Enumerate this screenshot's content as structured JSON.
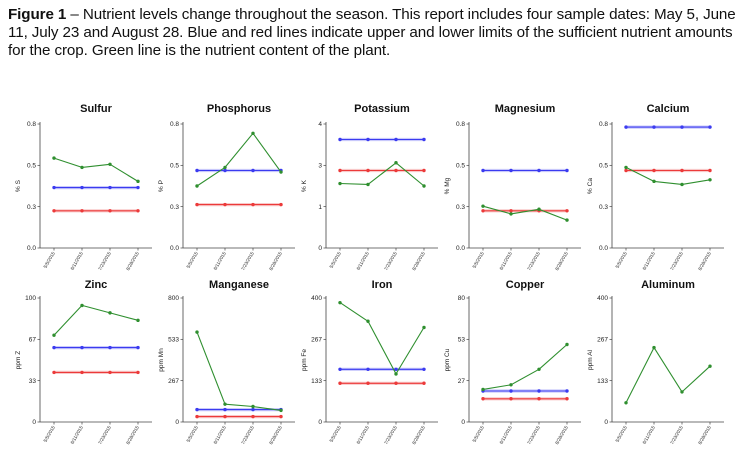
{
  "caption": {
    "figure_label": "Figure 1",
    "text": " – Nutrient levels change throughout the season. This report includes four sample dates: May 5, June 11, July 23 and August 28.  Blue and red lines indicate upper and lower limits of the sufficient nutrient amounts for the crop. Green line is the nutrient content of the plant."
  },
  "colors": {
    "upper": "#3b3bf0",
    "lower": "#ec3a3a",
    "content": "#2f8f2f",
    "axis": "#444444",
    "upper_band": "#c8c8fb",
    "lower_band": "#f8c8c8"
  },
  "chart_data": [
    {
      "type": "line",
      "title": "Sulfur",
      "ylabel": "% S",
      "ylim": [
        0,
        0.8
      ],
      "yticks": [
        "0.0",
        "0.3",
        "0.5",
        "0.8"
      ],
      "categories": [
        "5/5/2015",
        "6/11/2015",
        "7/23/2015",
        "8/28/2015"
      ],
      "series": [
        {
          "role": "upper",
          "values": [
            0.39,
            0.39,
            0.39,
            0.39
          ]
        },
        {
          "role": "lower",
          "values": [
            0.24,
            0.24,
            0.24,
            0.24
          ]
        },
        {
          "role": "content",
          "values": [
            0.58,
            0.52,
            0.54,
            0.43
          ]
        }
      ]
    },
    {
      "type": "line",
      "title": "Phosphorus",
      "ylabel": "% P",
      "ylim": [
        0,
        0.8
      ],
      "yticks": [
        "0.0",
        "0.3",
        "0.5",
        "0.8"
      ],
      "categories": [
        "5/5/2015",
        "6/11/2015",
        "7/23/2015",
        "8/28/2015"
      ],
      "series": [
        {
          "role": "upper",
          "values": [
            0.5,
            0.5,
            0.5,
            0.5
          ]
        },
        {
          "role": "lower",
          "values": [
            0.28,
            0.28,
            0.28,
            0.28
          ]
        },
        {
          "role": "content",
          "values": [
            0.4,
            0.52,
            0.74,
            0.49
          ]
        }
      ]
    },
    {
      "type": "line",
      "title": "Potassium",
      "ylabel": "% K",
      "ylim": [
        0,
        4
      ],
      "yticks": [
        "0",
        "1",
        "3",
        "4"
      ],
      "categories": [
        "5/5/2015",
        "6/11/2015",
        "7/23/2015",
        "8/28/2015"
      ],
      "series": [
        {
          "role": "upper",
          "values": [
            3.5,
            3.5,
            3.5,
            3.5
          ]
        },
        {
          "role": "lower",
          "values": [
            2.5,
            2.5,
            2.5,
            2.5
          ]
        },
        {
          "role": "content",
          "values": [
            2.08,
            2.05,
            2.75,
            2.0
          ]
        }
      ]
    },
    {
      "type": "line",
      "title": "Magnesium",
      "ylabel": "% Mg",
      "ylim": [
        0,
        0.8
      ],
      "yticks": [
        "0.0",
        "0.3",
        "0.5",
        "0.8"
      ],
      "categories": [
        "5/5/2015",
        "6/11/2015",
        "7/23/2015",
        "8/28/2015"
      ],
      "series": [
        {
          "role": "upper",
          "values": [
            0.5,
            0.5,
            0.5,
            0.5
          ]
        },
        {
          "role": "lower",
          "values": [
            0.24,
            0.24,
            0.24,
            0.24
          ]
        },
        {
          "role": "content",
          "values": [
            0.27,
            0.22,
            0.25,
            0.18
          ]
        }
      ]
    },
    {
      "type": "line",
      "title": "Calcium",
      "ylabel": "% Ca",
      "ylim": [
        0,
        0.8
      ],
      "yticks": [
        "0.0",
        "0.3",
        "0.5",
        "0.8"
      ],
      "categories": [
        "5/5/2015",
        "6/11/2015",
        "7/23/2015",
        "8/28/2015"
      ],
      "series": [
        {
          "role": "upper",
          "values": [
            0.78,
            0.78,
            0.78,
            0.78
          ]
        },
        {
          "role": "lower",
          "values": [
            0.5,
            0.5,
            0.5,
            0.5
          ]
        },
        {
          "role": "content",
          "values": [
            0.52,
            0.43,
            0.41,
            0.44
          ]
        }
      ]
    },
    {
      "type": "line",
      "title": "Zinc",
      "ylabel": "ppm Z",
      "ylim": [
        0,
        100
      ],
      "yticks": [
        "0",
        "33",
        "67",
        "100"
      ],
      "categories": [
        "5/5/2015",
        "6/11/2015",
        "7/23/2015",
        "8/28/2015"
      ],
      "series": [
        {
          "role": "upper",
          "values": [
            60,
            60,
            60,
            60
          ]
        },
        {
          "role": "lower",
          "values": [
            40,
            40,
            40,
            40
          ]
        },
        {
          "role": "content",
          "values": [
            70,
            94,
            88,
            82
          ]
        }
      ]
    },
    {
      "type": "line",
      "title": "Manganese",
      "ylabel": "ppm Mn",
      "ylim": [
        0,
        800
      ],
      "yticks": [
        "0",
        "267",
        "533",
        "800"
      ],
      "categories": [
        "5/5/2015",
        "6/11/2015",
        "7/23/2015",
        "8/28/2015"
      ],
      "series": [
        {
          "role": "upper",
          "values": [
            80,
            80,
            80,
            80
          ]
        },
        {
          "role": "lower",
          "values": [
            35,
            35,
            35,
            35
          ]
        },
        {
          "role": "content",
          "values": [
            580,
            115,
            100,
            75
          ]
        }
      ]
    },
    {
      "type": "line",
      "title": "Iron",
      "ylabel": "ppm Fe",
      "ylim": [
        0,
        400
      ],
      "yticks": [
        "0",
        "133",
        "267",
        "400"
      ],
      "categories": [
        "5/5/2015",
        "6/11/2015",
        "7/23/2015",
        "8/28/2015"
      ],
      "series": [
        {
          "role": "upper",
          "values": [
            170,
            170,
            170,
            170
          ]
        },
        {
          "role": "lower",
          "values": [
            125,
            125,
            125,
            125
          ]
        },
        {
          "role": "content",
          "values": [
            385,
            325,
            155,
            305
          ]
        }
      ]
    },
    {
      "type": "line",
      "title": "Copper",
      "ylabel": "ppm Cu",
      "ylim": [
        0,
        80
      ],
      "yticks": [
        "0",
        "27",
        "53",
        "80"
      ],
      "categories": [
        "5/5/2015",
        "6/11/2015",
        "7/23/2015",
        "8/28/2015"
      ],
      "series": [
        {
          "role": "upper",
          "values": [
            20,
            20,
            20,
            20
          ]
        },
        {
          "role": "lower",
          "values": [
            15,
            15,
            15,
            15
          ]
        },
        {
          "role": "content",
          "values": [
            21,
            24,
            34,
            50
          ]
        }
      ]
    },
    {
      "type": "line",
      "title": "Aluminum",
      "ylabel": "ppm Al",
      "ylim": [
        0,
        400
      ],
      "yticks": [
        "0",
        "133",
        "267",
        "400"
      ],
      "categories": [
        "5/5/2015",
        "6/11/2015",
        "7/23/2015",
        "8/28/2015"
      ],
      "series": [
        {
          "role": "content",
          "values": [
            62,
            240,
            97,
            180
          ]
        }
      ]
    }
  ]
}
